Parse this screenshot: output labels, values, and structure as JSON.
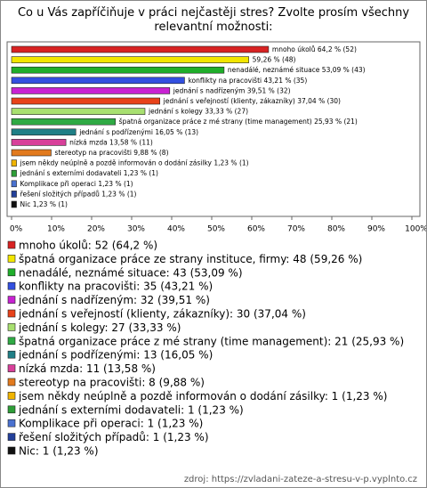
{
  "chart_data": {
    "type": "bar",
    "orientation": "horizontal",
    "title": "Co u Vás zapříčiňuje v práci nejčastěji stres? Zvolte prosím všechny relevantní možnosti:",
    "categories": [
      "mnoho úkolů: 52 (64,2 %)",
      "špatná organizace práce ze strany instituce, firmy: 48 (59,26 %)",
      "nenadálé, neznámé situace: 43 (53,09 %)",
      "konflikty na pracovišti: 35 (43,21 %)",
      "jednání s nadřízeným: 32 (39,51 %)",
      "jednání s veřejností (klienty, zákazníky): 30 (37,04 %)",
      "jednání s kolegy: 27 (33,33 %)",
      "špatná organizace práce z mé strany (time management): 21 (25,93 %)",
      "jednání s podřízenými: 13 (16,05 %)",
      "nízká mzda: 11 (13,58 %)",
      "stereotyp na pracovišti: 8 (9,88 %)",
      "jsem někdy neúplně a pozdě informován o dodání zásilky: 1 (1,23 %)",
      "jednání s externími dodavateli: 1 (1,23 %)",
      "Komplikace při operaci: 1 (1,23 %)",
      "řešení složitých případů: 1 (1,23 %)",
      "Nic: 1 (1,23 %)"
    ],
    "values": [
      64.2,
      59.26,
      53.09,
      43.21,
      39.51,
      37.04,
      33.33,
      25.93,
      16.05,
      13.58,
      9.88,
      1.23,
      1.23,
      1.23,
      1.23,
      1.23
    ],
    "value_labels": [
      "mnoho úkolů 64,2 % (52)",
      "59,26 % (48)",
      "nenadálé, neznámé situace 53,09 % (43)",
      "konflikty na pracovišti 43,21 % (35)",
      "jednání s nadřízeným 39,51 % (32)",
      "jednání s veřejností (klienty, zákazníky) 37,04 % (30)",
      "jednání s kolegy 33,33 % (27)",
      "špatná organizace práce z mé strany (time management) 25,93 % (21)",
      "jednání s podřízenými 16,05 % (13)",
      "nízká mzda 13,58 % (11)",
      "stereotyp na pracovišti 9,88 % (8)",
      "jsem někdy neúplně a pozdě informován o dodání zásilky 1,23 % (1)",
      "jednání s externími dodavateli 1,23 % (1)",
      "Komplikace při operaci 1,23 % (1)",
      "řešení složitých případů 1,23 % (1)",
      "Nic 1,23 % (1)"
    ],
    "colors": [
      "#d82222",
      "#f2e600",
      "#1fae2a",
      "#3350e0",
      "#c822d2",
      "#e8421a",
      "#a8e070",
      "#2faa44",
      "#1f7f86",
      "#d8409a",
      "#e27a1e",
      "#f0b400",
      "#2e9e38",
      "#4a72d0",
      "#23409a",
      "#111111"
    ],
    "xlim": [
      0,
      100
    ],
    "xticks": [
      {
        "value": 0,
        "label": "0%"
      },
      {
        "value": 10,
        "label": "10%"
      },
      {
        "value": 20,
        "label": "20%"
      },
      {
        "value": 30,
        "label": "30%"
      },
      {
        "value": 40,
        "label": "40%"
      },
      {
        "value": 50,
        "label": "50%"
      },
      {
        "value": 60,
        "label": "60%"
      },
      {
        "value": 70,
        "label": "70%"
      },
      {
        "value": 80,
        "label": "80%"
      },
      {
        "value": 90,
        "label": "90%"
      },
      {
        "value": 100,
        "label": "100%"
      }
    ],
    "source": "zdroj: https://zvladani-zateze-a-stresu-v-p.vyplnto.cz"
  }
}
